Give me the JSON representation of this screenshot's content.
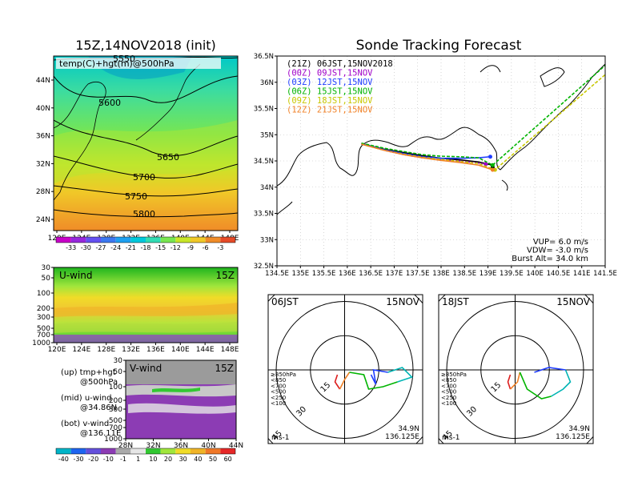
{
  "chart_data": [
    {
      "type": "heatmap",
      "title": "15Z,14NOV2018 (init)",
      "subtitle": "temp(C)+hgt(m)@500hPa",
      "x_ticks": [
        "120E",
        "124E",
        "128E",
        "132E",
        "136E",
        "140E",
        "144E",
        "148E"
      ],
      "y_ticks": [
        "44N",
        "40N",
        "36N",
        "32N",
        "28N",
        "24N"
      ],
      "contour_labels": [
        "5550",
        "5600",
        "5650",
        "5700",
        "5750",
        "5800"
      ],
      "colorbar_labels": [
        "-33",
        "-30",
        "-27",
        "-24",
        "-21",
        "-18",
        "-15",
        "-12",
        "-9",
        "-6",
        "-3"
      ]
    },
    {
      "type": "heatmap",
      "label": "U-wind",
      "time": "15Z",
      "x_ticks": [
        "120E",
        "124E",
        "128E",
        "132E",
        "136E",
        "140E",
        "144E",
        "148E"
      ],
      "y_ticks": [
        "30",
        "50",
        "100",
        "200",
        "300",
        "500",
        "700",
        "1000"
      ]
    },
    {
      "type": "heatmap",
      "label": "V-wind",
      "time": "15Z",
      "x_ticks": [
        "28N",
        "32N",
        "36N",
        "40N",
        "44N"
      ],
      "y_ticks": [
        "30",
        "50",
        "100",
        "200",
        "300",
        "500",
        "700",
        "1000"
      ],
      "colorbar_labels": [
        "-40",
        "-30",
        "-20",
        "-10",
        "-1",
        "1",
        "10",
        "20",
        "30",
        "40",
        "50",
        "60"
      ]
    },
    {
      "type": "line",
      "title": "Sonde Tracking Forecast",
      "xlim": [
        134.5,
        141.5
      ],
      "ylim": [
        32.5,
        36.5
      ],
      "x_ticks": [
        "134.5E",
        "135E",
        "135.5E",
        "136E",
        "136.5E",
        "137E",
        "137.5E",
        "138E",
        "138.5E",
        "139E",
        "139.5E",
        "140E",
        "140.5E",
        "141E",
        "141.5E"
      ],
      "y_ticks": [
        "36.5N",
        "36N",
        "35.5N",
        "35N",
        "34.5N",
        "34N",
        "33.5N",
        "33N",
        "32.5N"
      ],
      "series": [
        {
          "name": "(21Z)  06JST,15NOV2018",
          "color": "#000000",
          "x": [
            136.3,
            136.8,
            137.2,
            137.6,
            138.0,
            138.4,
            138.8,
            139.05,
            139.1
          ],
          "y": [
            34.83,
            34.72,
            34.66,
            34.6,
            34.55,
            34.52,
            34.48,
            34.43,
            34.38
          ]
        },
        {
          "name": "(00Z)  09JST,15NOV",
          "color": "#a000c8",
          "x": [
            136.3,
            136.8,
            137.2,
            137.6,
            138.0,
            138.4,
            138.7,
            138.95
          ],
          "y": [
            34.83,
            34.7,
            34.62,
            34.56,
            34.52,
            34.5,
            34.47,
            34.44
          ]
        },
        {
          "name": "(03Z)  12JST,15NOV",
          "color": "#1e3cff",
          "x": [
            136.3,
            136.8,
            137.2,
            137.6,
            138.0,
            138.4,
            138.8,
            139.05
          ],
          "y": [
            34.83,
            34.71,
            34.64,
            34.58,
            34.55,
            34.55,
            34.56,
            34.58
          ]
        },
        {
          "name": "(06Z)  15JST,15NOV",
          "color": "#00b400",
          "x": [
            136.3,
            136.8,
            137.2,
            137.6,
            138.0,
            138.4,
            138.8,
            139.1,
            141.7
          ],
          "y": [
            34.84,
            34.74,
            34.68,
            34.62,
            34.59,
            34.58,
            34.56,
            34.42,
            36.48
          ]
        },
        {
          "name": "(09Z)  18JST,15NOV",
          "color": "#c8c800",
          "x": [
            136.3,
            136.8,
            137.2,
            137.6,
            138.0,
            138.4,
            138.8,
            139.15,
            141.7
          ],
          "y": [
            34.82,
            34.7,
            34.63,
            34.57,
            34.53,
            34.49,
            34.45,
            34.33,
            36.3
          ]
        },
        {
          "name": "(12Z)  21JST,15NOV",
          "color": "#f08228",
          "x": [
            136.3,
            136.8,
            137.2,
            137.6,
            138.0,
            138.4,
            138.8,
            139.1
          ],
          "y": [
            34.82,
            34.7,
            34.62,
            34.56,
            34.51,
            34.47,
            34.42,
            34.33
          ]
        }
      ],
      "annotations": [
        "VUP=  6.0 m/s",
        "VDW= -3.0 m/s",
        "Burst Alt=  34.0 km"
      ]
    },
    {
      "type": "scatter",
      "label": "06JST",
      "date": "15NOV",
      "ring_labels": [
        "15",
        "30",
        "45",
        "60"
      ],
      "unit": "ms-1",
      "location": [
        "34.9N",
        "136.125E"
      ],
      "legend": [
        {
          "label": "≥850hPa",
          "color": "#dc1e1e"
        },
        {
          "label": "<850",
          "color": "#f08228"
        },
        {
          "label": "<700",
          "color": "#c8c800"
        },
        {
          "label": "<500",
          "color": "#00b400"
        },
        {
          "label": "<250",
          "color": "#00b4b4"
        },
        {
          "label": "<100",
          "color": "#1e3cff"
        }
      ],
      "hodograph": [
        {
          "color": "#dc1e1e",
          "points": [
            [
              -3,
              -2
            ],
            [
              -4,
              -5
            ],
            [
              -2,
              -8
            ]
          ]
        },
        {
          "color": "#f08228",
          "points": [
            [
              -2,
              -8
            ],
            [
              0,
              -4
            ],
            [
              2,
              -1
            ]
          ]
        },
        {
          "color": "#00b400",
          "points": [
            [
              2,
              -1
            ],
            [
              8,
              -2
            ],
            [
              10,
              -8
            ],
            [
              16,
              -7
            ],
            [
              22,
              -5
            ]
          ]
        },
        {
          "color": "#00b4b4",
          "points": [
            [
              22,
              -5
            ],
            [
              28,
              -3
            ],
            [
              24,
              1
            ],
            [
              18,
              -1
            ]
          ]
        },
        {
          "color": "#1e3cff",
          "points": [
            [
              18,
              -1
            ],
            [
              12,
              0
            ],
            [
              13,
              -6
            ],
            [
              11,
              -2
            ]
          ]
        }
      ]
    },
    {
      "type": "scatter",
      "label": "18JST",
      "date": "15NOV",
      "ring_labels": [
        "15",
        "30",
        "45",
        "60"
      ],
      "unit": "ms-1",
      "location": [
        "34.9N",
        "136.125E"
      ],
      "legend": [
        {
          "label": "≥850hPa",
          "color": "#dc1e1e"
        },
        {
          "label": "<850",
          "color": "#f08228"
        },
        {
          "label": "<700",
          "color": "#c8c800"
        },
        {
          "label": "<500",
          "color": "#00b400"
        },
        {
          "label": "<250",
          "color": "#00b4b4"
        },
        {
          "label": "<100",
          "color": "#1e3cff"
        }
      ],
      "hodograph": [
        {
          "color": "#dc1e1e",
          "points": [
            [
              -2,
              -2
            ],
            [
              -3,
              -5
            ],
            [
              -2,
              -8
            ]
          ]
        },
        {
          "color": "#f08228",
          "points": [
            [
              -2,
              -8
            ],
            [
              1,
              -5
            ],
            [
              2,
              -1
            ]
          ]
        },
        {
          "color": "#00b400",
          "points": [
            [
              2,
              -1
            ],
            [
              5,
              -8
            ],
            [
              11,
              -12
            ],
            [
              15,
              -11
            ]
          ]
        },
        {
          "color": "#00b4b4",
          "points": [
            [
              15,
              -11
            ],
            [
              20,
              -8
            ],
            [
              23,
              -5
            ],
            [
              21,
              0
            ]
          ]
        },
        {
          "color": "#1e3cff",
          "points": [
            [
              21,
              0
            ],
            [
              14,
              1
            ],
            [
              8,
              -1
            ]
          ]
        }
      ]
    }
  ],
  "legend_text": [
    {
      "a": "(up) tmp+hgt",
      "b": "@500hPa"
    },
    {
      "a": "(mid) u-wind",
      "b": "@34.86N"
    },
    {
      "a": "(bot) v-wind",
      "b": "@136.11E"
    }
  ]
}
